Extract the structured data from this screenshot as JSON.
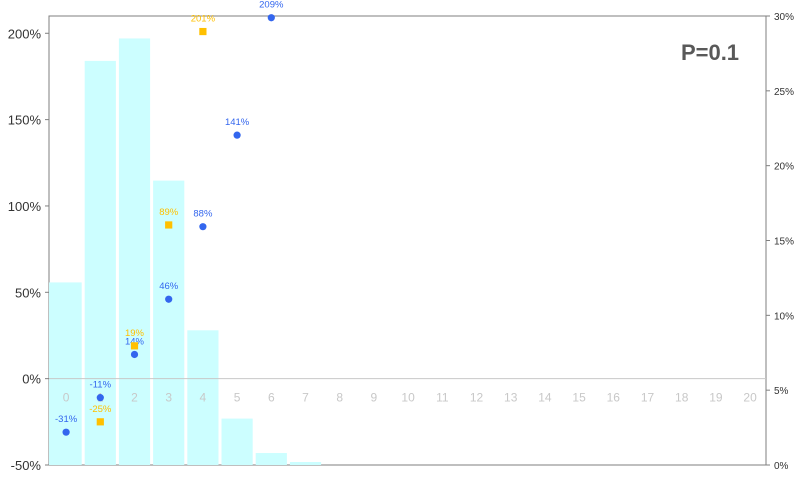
{
  "chart_data": {
    "type": "bar",
    "title": "",
    "annotation": "P=0.1",
    "categories": [
      "0",
      "1",
      "2",
      "3",
      "4",
      "5",
      "6",
      "7",
      "8",
      "9",
      "10",
      "11",
      "12",
      "13",
      "14",
      "15",
      "16",
      "17",
      "18",
      "19",
      "20"
    ],
    "bar_series": {
      "axis": "right",
      "values": [
        12.2,
        27.0,
        28.5,
        19.0,
        9.0,
        3.1,
        0.8,
        0.2,
        0,
        0,
        0,
        0,
        0,
        0,
        0,
        0,
        0,
        0,
        0,
        0,
        0
      ],
      "color": "#ccfeff"
    },
    "point_series": [
      {
        "axis": "left",
        "marker": "circle",
        "color": "#3366ee",
        "values": [
          -31,
          -11,
          14,
          46,
          88,
          141,
          209
        ],
        "labels": [
          "-31%",
          "-11%",
          "14%",
          "46%",
          "88%",
          "141%",
          "209%"
        ]
      },
      {
        "axis": "left",
        "marker": "square",
        "color": "#ffc000",
        "values": [
          null,
          -25,
          19,
          89,
          201
        ],
        "labels": [
          "",
          "-25%",
          "19%",
          "89%",
          "201%"
        ]
      }
    ],
    "left_axis": {
      "min": -50,
      "max": 210,
      "ticks": [
        -50,
        0,
        50,
        100,
        150,
        200
      ],
      "tick_labels": [
        "-50%",
        "0%",
        "50%",
        "100%",
        "150%",
        "200%"
      ]
    },
    "right_axis": {
      "min": 0,
      "max": 30,
      "ticks": [
        0,
        5,
        10,
        15,
        20,
        25,
        30
      ],
      "tick_labels": [
        "0%",
        "5%",
        "10%",
        "15%",
        "20%",
        "25%",
        "30%"
      ]
    },
    "grid": false,
    "legend": "none"
  }
}
